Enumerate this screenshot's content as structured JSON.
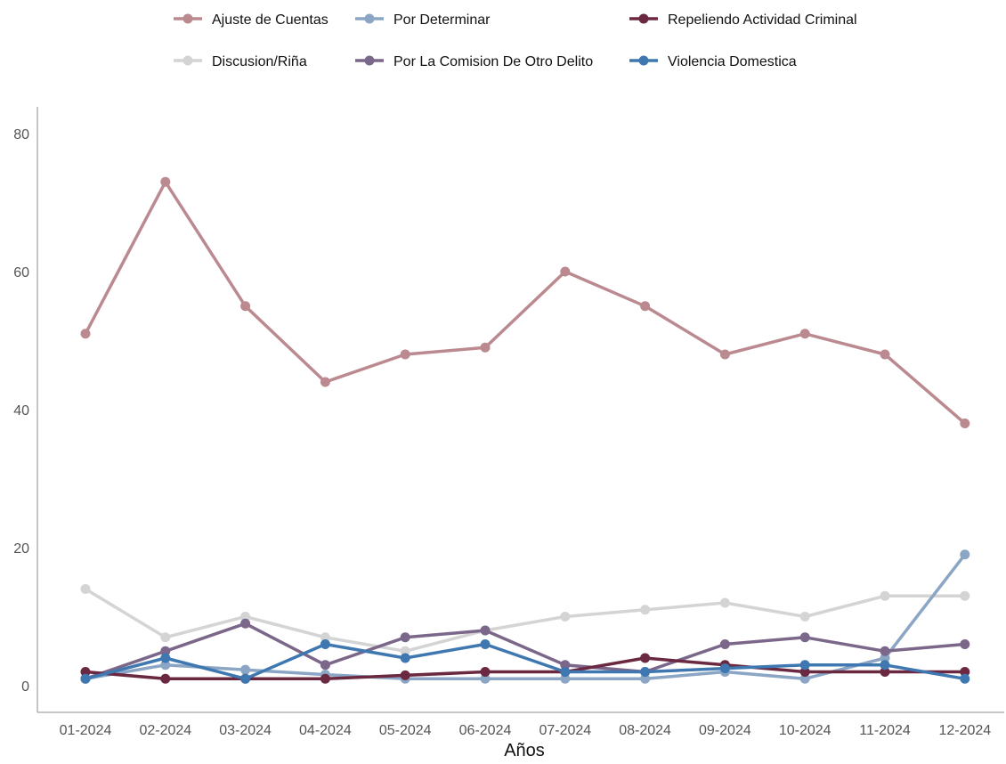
{
  "chart_data": {
    "type": "line",
    "title": "",
    "xlabel": "Años",
    "ylabel": "",
    "ylim": [
      0,
      80
    ],
    "yticks": [
      0,
      20,
      40,
      60,
      80
    ],
    "grid": false,
    "legend_position": "top",
    "categories": [
      "01-2024",
      "02-2024",
      "03-2024",
      "04-2024",
      "05-2024",
      "06-2024",
      "07-2024",
      "08-2024",
      "09-2024",
      "10-2024",
      "11-2024",
      "12-2024"
    ],
    "series": [
      {
        "name": "Discusion/Riña",
        "color": "#d4d4d4",
        "values": [
          14,
          7,
          10,
          7,
          5,
          8,
          10,
          11,
          12,
          10,
          13,
          13
        ]
      },
      {
        "name": "Por Determinar",
        "color": "#8ba6c4",
        "values": [
          1,
          3,
          2.3,
          1.6,
          1,
          1,
          1,
          1,
          2,
          1,
          4,
          19
        ]
      },
      {
        "name": "Por La Comision De Otro Delito",
        "color": "#7b6789",
        "values": [
          1,
          5,
          9,
          3,
          7,
          8,
          3,
          2,
          6,
          7,
          5,
          6
        ]
      },
      {
        "name": "Repeliendo Actividad Criminal",
        "color": "#6b2841",
        "values": [
          2,
          1,
          1,
          1,
          1.5,
          2,
          2,
          4,
          3,
          2,
          2,
          2
        ]
      },
      {
        "name": "Violencia Domestica",
        "color": "#3f78b0",
        "values": [
          1,
          4,
          1,
          6,
          4,
          6,
          2,
          2,
          2.5,
          3,
          3,
          1
        ]
      },
      {
        "name": "Ajuste de Cuentas",
        "color": "#bb8a91",
        "values": [
          51,
          73,
          55,
          44,
          48,
          49,
          60,
          55,
          48,
          51,
          48,
          38
        ]
      }
    ],
    "legend_order": [
      "Ajuste de Cuentas",
      "Por Determinar",
      "Repeliendo Actividad Criminal",
      "Discusion/Riña",
      "Por La Comision De Otro Delito",
      "Violencia Domestica"
    ]
  }
}
